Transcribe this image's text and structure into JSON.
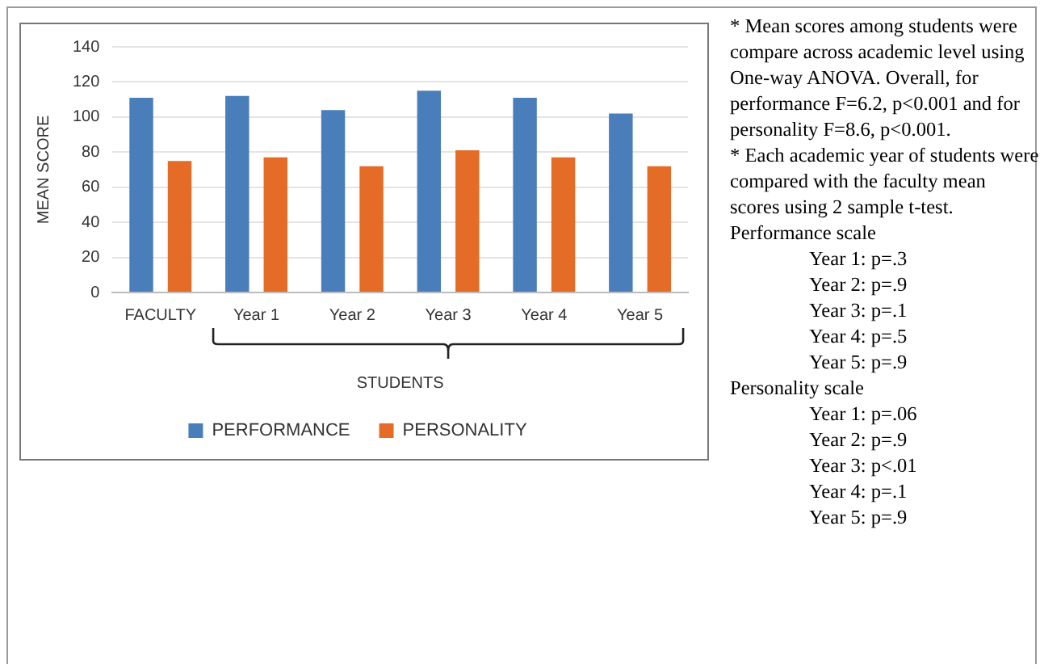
{
  "chart_data": {
    "type": "bar",
    "ylabel": "MEAN SCORE",
    "xlabel": "STUDENTS",
    "categories": [
      "FACULTY",
      "Year 1",
      "Year 2",
      "Year 3",
      "Year 4",
      "Year 5"
    ],
    "series": [
      {
        "name": "PERFORMANCE",
        "color": "#4a7ebb",
        "values": [
          111,
          112,
          104,
          115,
          111,
          102
        ]
      },
      {
        "name": "PERSONALITY",
        "color": "#e46c26",
        "values": [
          75,
          77,
          72,
          81,
          77,
          72
        ]
      }
    ],
    "ylim": [
      0,
      140
    ],
    "yticks": [
      0,
      20,
      40,
      60,
      80,
      100,
      120,
      140
    ],
    "grid": "y",
    "legend": "bottom",
    "annotations": [
      "* Mean scores among students were compare across academic level using One-way ANOVA. Overall, for performance F=6.2, p<0.001 and for personality F=8.6, p<0.001.",
      "* Each academic year of students were compared with the faculty mean scores using 2 sample t-test.",
      "Performance scale",
      "Year 1: p=.3",
      "Year 2: p=.9",
      "Year 3: p=.1",
      "Year 4: p=.5",
      "Year 5: p=.9",
      "Personality scale",
      "Year 1: p=.06",
      "Year 2: p=.9",
      "Year 3: p<.01",
      "Year 4: p=.1",
      "Year 5: p=.9"
    ]
  }
}
